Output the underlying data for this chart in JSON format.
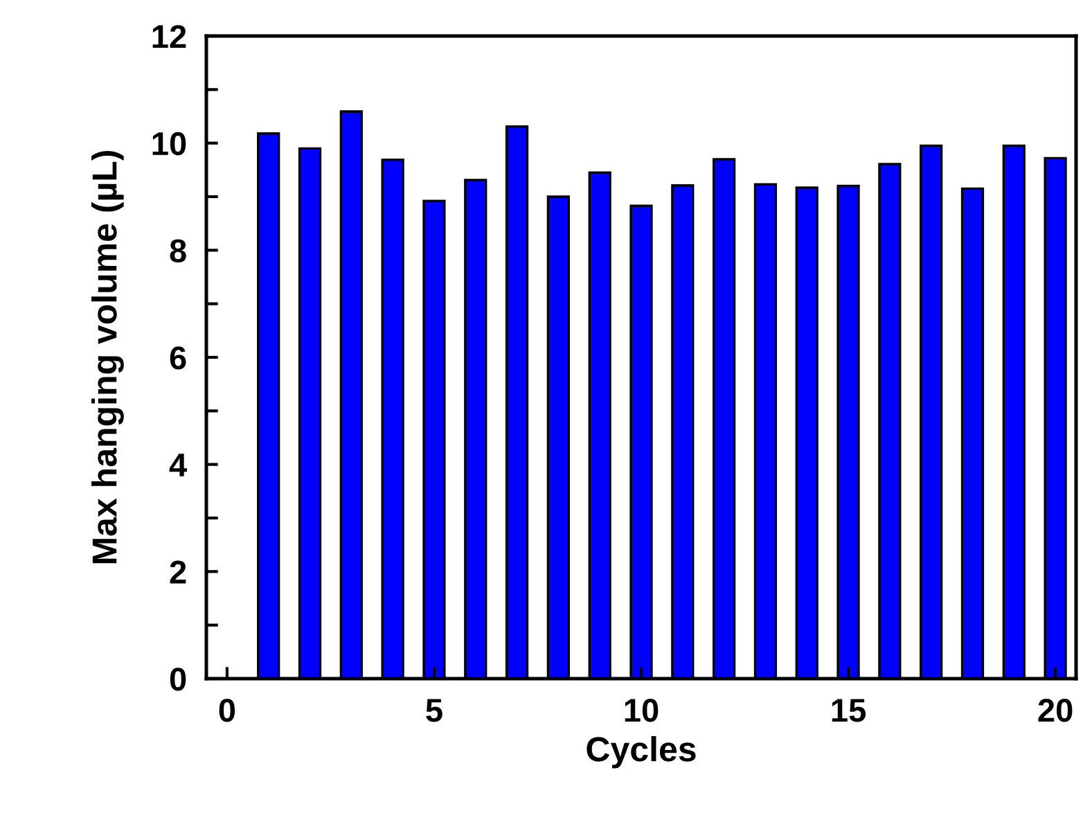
{
  "chart_data": {
    "type": "bar",
    "xlabel": "Cycles",
    "ylabel": "Max hanging volume (µL)",
    "x": [
      1,
      2,
      3,
      4,
      5,
      6,
      7,
      8,
      9,
      10,
      11,
      12,
      13,
      14,
      15,
      16,
      17,
      18,
      19,
      20
    ],
    "values": [
      10.18,
      9.9,
      10.59,
      9.69,
      8.92,
      9.31,
      10.31,
      9.0,
      9.45,
      8.83,
      9.21,
      9.7,
      9.23,
      9.17,
      9.2,
      9.61,
      9.95,
      9.15,
      9.95,
      9.72
    ],
    "color": "#0000ff",
    "xlim": [
      -0.5,
      20.5
    ],
    "xticks": [
      0,
      5,
      10,
      15,
      20
    ],
    "ylim": [
      0,
      12
    ],
    "yticks": [
      0,
      {
        "value": 1,
        "label": null
      },
      2,
      {
        "value": 3,
        "label": null
      },
      4,
      {
        "value": 5,
        "label": null
      },
      6,
      {
        "value": 7,
        "label": null
      },
      8,
      {
        "value": 9,
        "label": null
      },
      10,
      {
        "value": 11,
        "label": null
      },
      12
    ],
    "grid": false,
    "legend": false
  }
}
